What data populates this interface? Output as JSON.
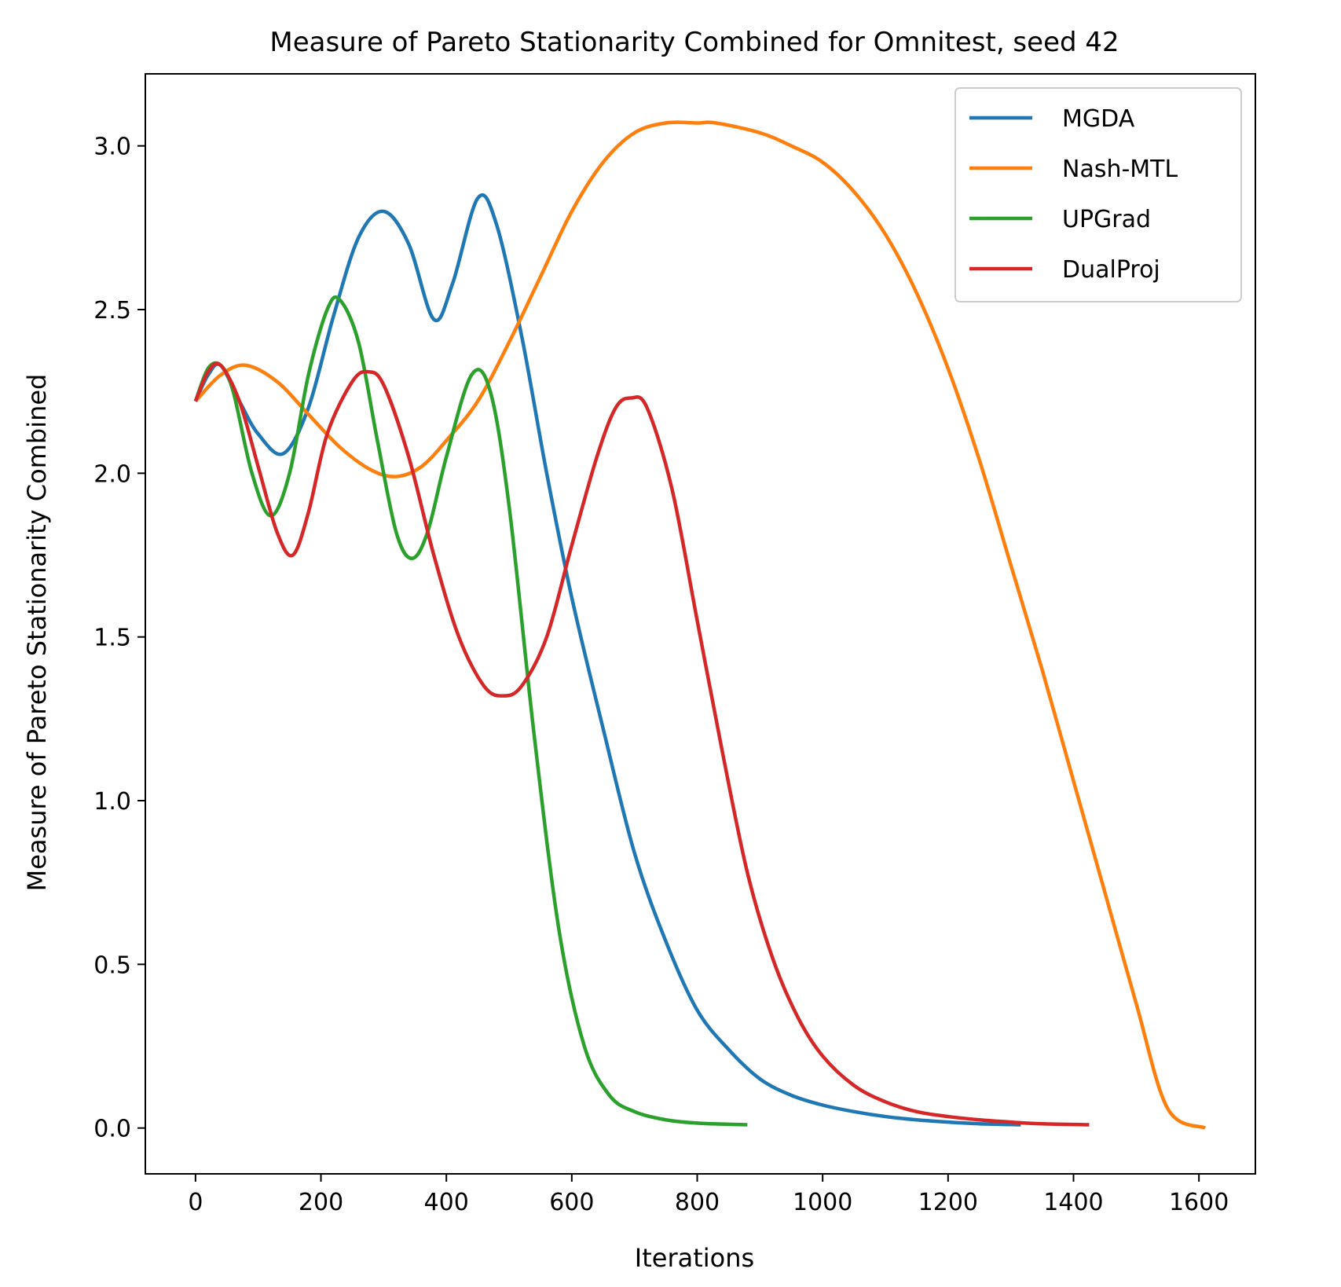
{
  "chart_data": {
    "type": "line",
    "title": "Measure of Pareto Stationarity Combined for Omnitest, seed 42",
    "xlabel": "Iterations",
    "ylabel": "Measure of Pareto Stationarity Combined",
    "xlim": [
      -80,
      1690
    ],
    "ylim": [
      -0.14,
      3.22
    ],
    "xticks": [
      0,
      200,
      400,
      600,
      800,
      1000,
      1200,
      1400,
      1600
    ],
    "yticks": [
      0.0,
      0.5,
      1.0,
      1.5,
      2.0,
      2.5,
      3.0
    ],
    "grid": false,
    "legend_position": "top-right",
    "series": [
      {
        "name": "MGDA",
        "color": "#1f77b4",
        "x": [
          0,
          20,
          40,
          70,
          100,
          140,
          180,
          220,
          260,
          300,
          340,
          380,
          410,
          450,
          480,
          520,
          560,
          600,
          650,
          700,
          750,
          800,
          850,
          900,
          950,
          1000,
          1050,
          1100,
          1150,
          1200,
          1250,
          1316
        ],
        "y": [
          2.22,
          2.3,
          2.33,
          2.22,
          2.12,
          2.06,
          2.2,
          2.48,
          2.72,
          2.8,
          2.7,
          2.47,
          2.58,
          2.84,
          2.76,
          2.42,
          2.0,
          1.62,
          1.22,
          0.84,
          0.57,
          0.36,
          0.24,
          0.15,
          0.1,
          0.07,
          0.05,
          0.035,
          0.025,
          0.018,
          0.013,
          0.01
        ]
      },
      {
        "name": "Nash-MTL",
        "color": "#ff7f0e",
        "x": [
          0,
          40,
          80,
          130,
          180,
          230,
          280,
          320,
          360,
          400,
          450,
          500,
          550,
          600,
          650,
          700,
          750,
          800,
          830,
          900,
          950,
          1000,
          1050,
          1100,
          1150,
          1200,
          1250,
          1300,
          1350,
          1400,
          1450,
          1500,
          1550,
          1610
        ],
        "y": [
          2.22,
          2.3,
          2.33,
          2.28,
          2.18,
          2.08,
          2.01,
          1.99,
          2.02,
          2.1,
          2.22,
          2.4,
          2.6,
          2.8,
          2.95,
          3.04,
          3.07,
          3.07,
          3.07,
          3.04,
          3.0,
          2.95,
          2.86,
          2.73,
          2.55,
          2.32,
          2.04,
          1.72,
          1.4,
          1.06,
          0.72,
          0.38,
          0.06,
          0.0
        ]
      },
      {
        "name": "UPGrad",
        "color": "#2ca02c",
        "x": [
          0,
          20,
          40,
          60,
          90,
          120,
          150,
          180,
          210,
          230,
          260,
          290,
          320,
          345,
          370,
          400,
          440,
          470,
          500,
          540,
          580,
          620,
          660,
          700,
          750,
          800,
          840,
          880
        ],
        "y": [
          2.22,
          2.32,
          2.33,
          2.25,
          2.0,
          1.87,
          2.0,
          2.3,
          2.5,
          2.53,
          2.4,
          2.1,
          1.82,
          1.74,
          1.82,
          2.05,
          2.3,
          2.25,
          1.9,
          1.2,
          0.6,
          0.25,
          0.1,
          0.05,
          0.025,
          0.015,
          0.012,
          0.01
        ]
      },
      {
        "name": "DualProj",
        "color": "#d62728",
        "x": [
          0,
          20,
          40,
          70,
          100,
          130,
          155,
          180,
          210,
          250,
          275,
          300,
          340,
          380,
          420,
          460,
          490,
          520,
          560,
          600,
          640,
          670,
          695,
          720,
          760,
          800,
          840,
          880,
          920,
          960,
          1000,
          1050,
          1100,
          1150,
          1200,
          1250,
          1300,
          1350,
          1425
        ],
        "y": [
          2.22,
          2.31,
          2.33,
          2.22,
          2.02,
          1.82,
          1.75,
          1.88,
          2.12,
          2.28,
          2.31,
          2.27,
          2.05,
          1.75,
          1.5,
          1.35,
          1.32,
          1.35,
          1.5,
          1.78,
          2.05,
          2.2,
          2.23,
          2.2,
          1.95,
          1.55,
          1.15,
          0.78,
          0.52,
          0.34,
          0.22,
          0.13,
          0.08,
          0.05,
          0.035,
          0.025,
          0.018,
          0.013,
          0.01
        ]
      }
    ]
  }
}
